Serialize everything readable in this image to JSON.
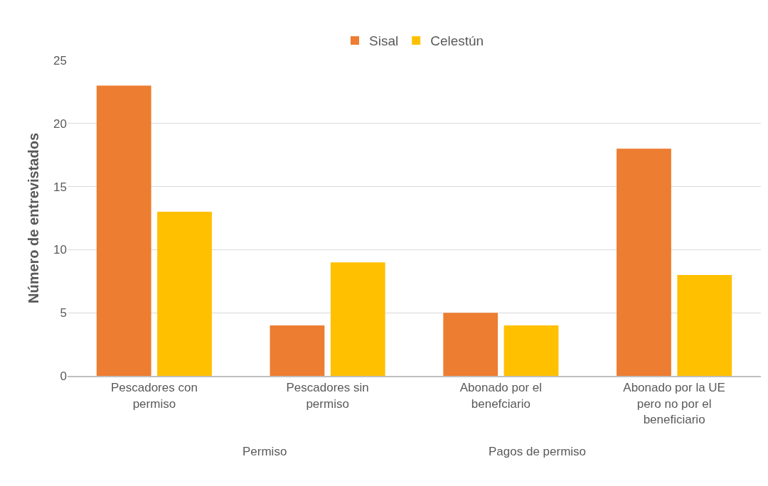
{
  "chart_data": {
    "type": "bar",
    "ylabel": "Número de entrevistados",
    "categories": [
      "Pescadores con permiso",
      "Pescadores sin permiso",
      "Abonado por el benefciario",
      "Abonado por la UE pero no por el beneficiario"
    ],
    "series": [
      {
        "name": "Sisal",
        "color": "#ed7d31",
        "values": [
          23,
          4,
          5,
          18
        ]
      },
      {
        "name": "Celestún",
        "color": "#ffc000",
        "values": [
          13,
          9,
          4,
          8
        ]
      }
    ],
    "annotations": [
      "Permiso",
      "Pagos de permiso"
    ],
    "ylim": [
      0,
      25
    ],
    "yticks": [
      0,
      5,
      10,
      15,
      20,
      25
    ],
    "grid": "y",
    "legend": "top"
  }
}
